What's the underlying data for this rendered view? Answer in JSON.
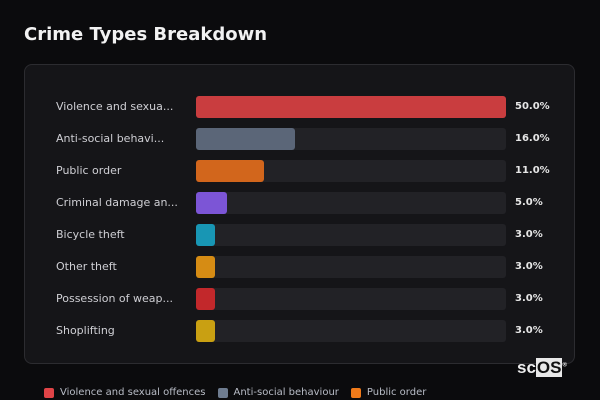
{
  "title": "Crime Types Breakdown",
  "logo": {
    "prefix": "sc",
    "box": "OS",
    "mark": "®"
  },
  "chart_data": {
    "type": "bar",
    "orientation": "horizontal",
    "title": "Crime Types Breakdown",
    "categories": [
      "Violence and sexua...",
      "Anti-social behavi...",
      "Public order",
      "Criminal damage an...",
      "Bicycle theft",
      "Other theft",
      "Possession of weap...",
      "Shoplifting"
    ],
    "values": [
      50.0,
      16.0,
      11.0,
      5.0,
      3.0,
      3.0,
      3.0,
      3.0
    ],
    "value_labels": [
      "50.0%",
      "16.0%",
      "11.0%",
      "5.0%",
      "3.0%",
      "3.0%",
      "3.0%",
      "3.0%"
    ],
    "colors": [
      "#c93d3f",
      "#5b6678",
      "#d2661c",
      "#7c55d6",
      "#1896b4",
      "#d68c14",
      "#c2282b",
      "#c9a012"
    ],
    "xlim": [
      0,
      50
    ],
    "grid": false,
    "legend": {
      "placement": "bottom",
      "entries": [
        {
          "name": "Violence and sexual offences",
          "color": "#e04447"
        },
        {
          "name": "Anti-social behaviour",
          "color": "#6e7c90"
        },
        {
          "name": "Public order",
          "color": "#f07a1a"
        }
      ]
    }
  }
}
